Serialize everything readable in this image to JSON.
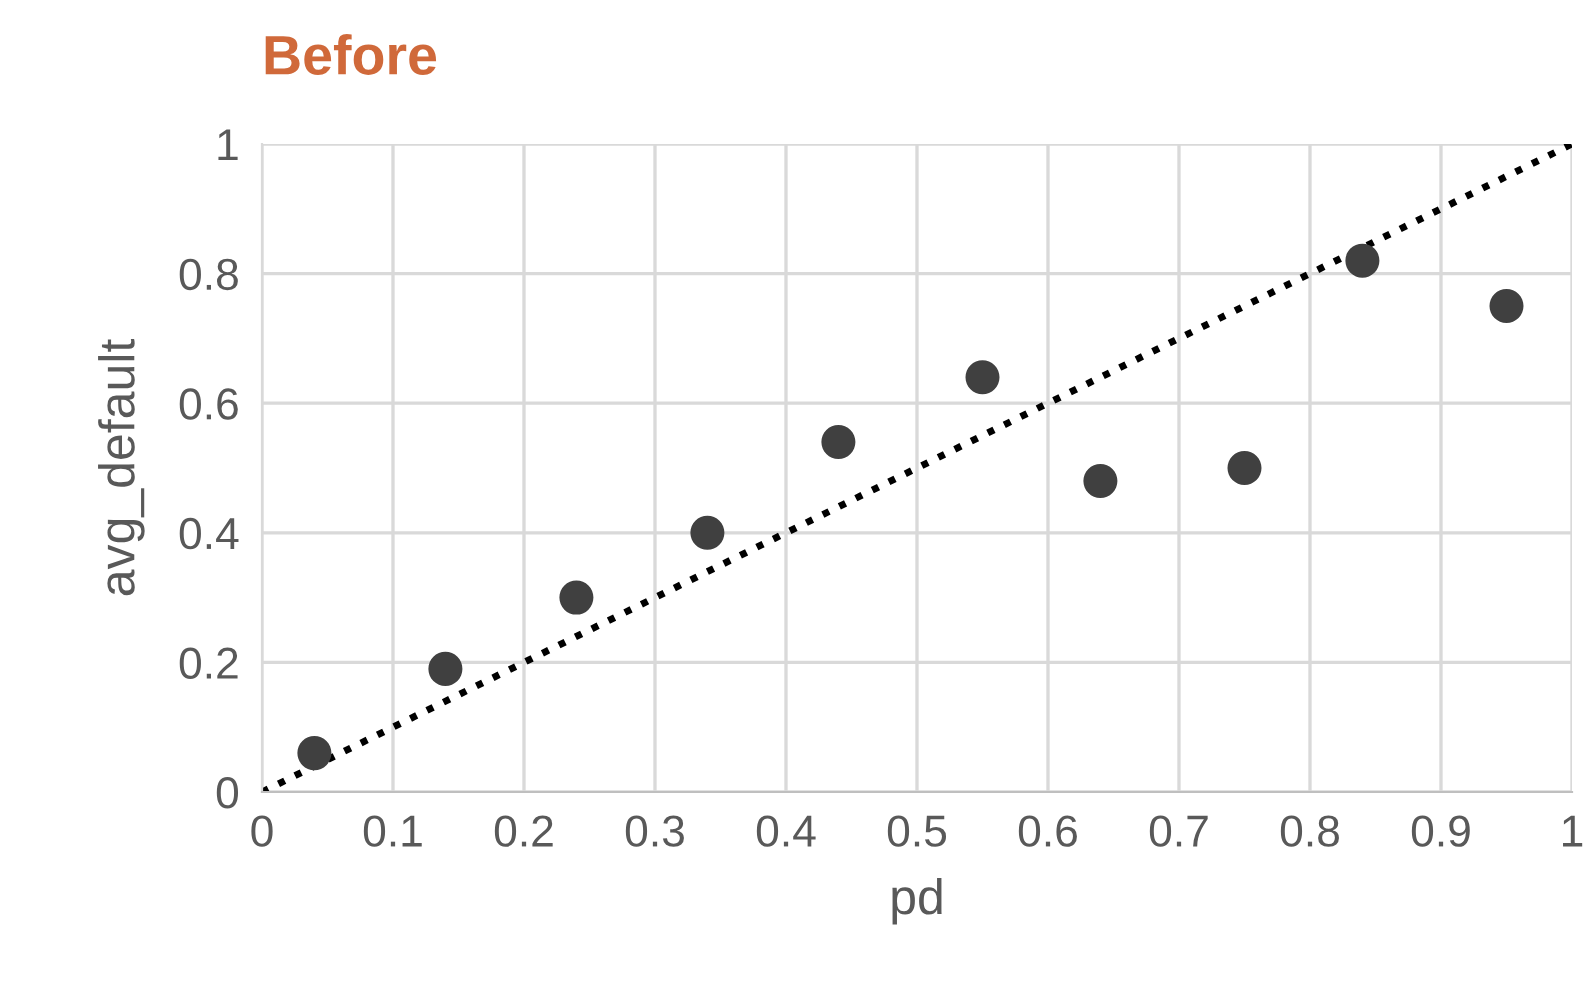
{
  "chart_data": {
    "type": "scatter",
    "title": "Before",
    "xlabel": "pd",
    "ylabel": "avg_default",
    "series": [
      {
        "color": "#404040",
        "marker": "circle",
        "x": [
          0.04,
          0.14,
          0.24,
          0.34,
          0.44,
          0.55,
          0.64,
          0.75,
          0.84,
          0.95
        ],
        "values": [
          0.06,
          0.19,
          0.3,
          0.4,
          0.54,
          0.64,
          0.48,
          0.5,
          0.82,
          0.75
        ]
      },
      {
        "type": "line",
        "color": "#000000",
        "line_style": "dotted",
        "x": [
          0,
          1
        ],
        "values": [
          0,
          1
        ]
      }
    ],
    "xlim": [
      0,
      1
    ],
    "ylim": [
      0,
      1
    ],
    "xticks": [
      0,
      0.1,
      0.2,
      0.3,
      0.4,
      0.5,
      0.6,
      0.7,
      0.8,
      0.9,
      1
    ],
    "yticks": [
      0,
      0.2,
      0.4,
      0.6,
      0.8,
      1
    ],
    "grid": true
  }
}
